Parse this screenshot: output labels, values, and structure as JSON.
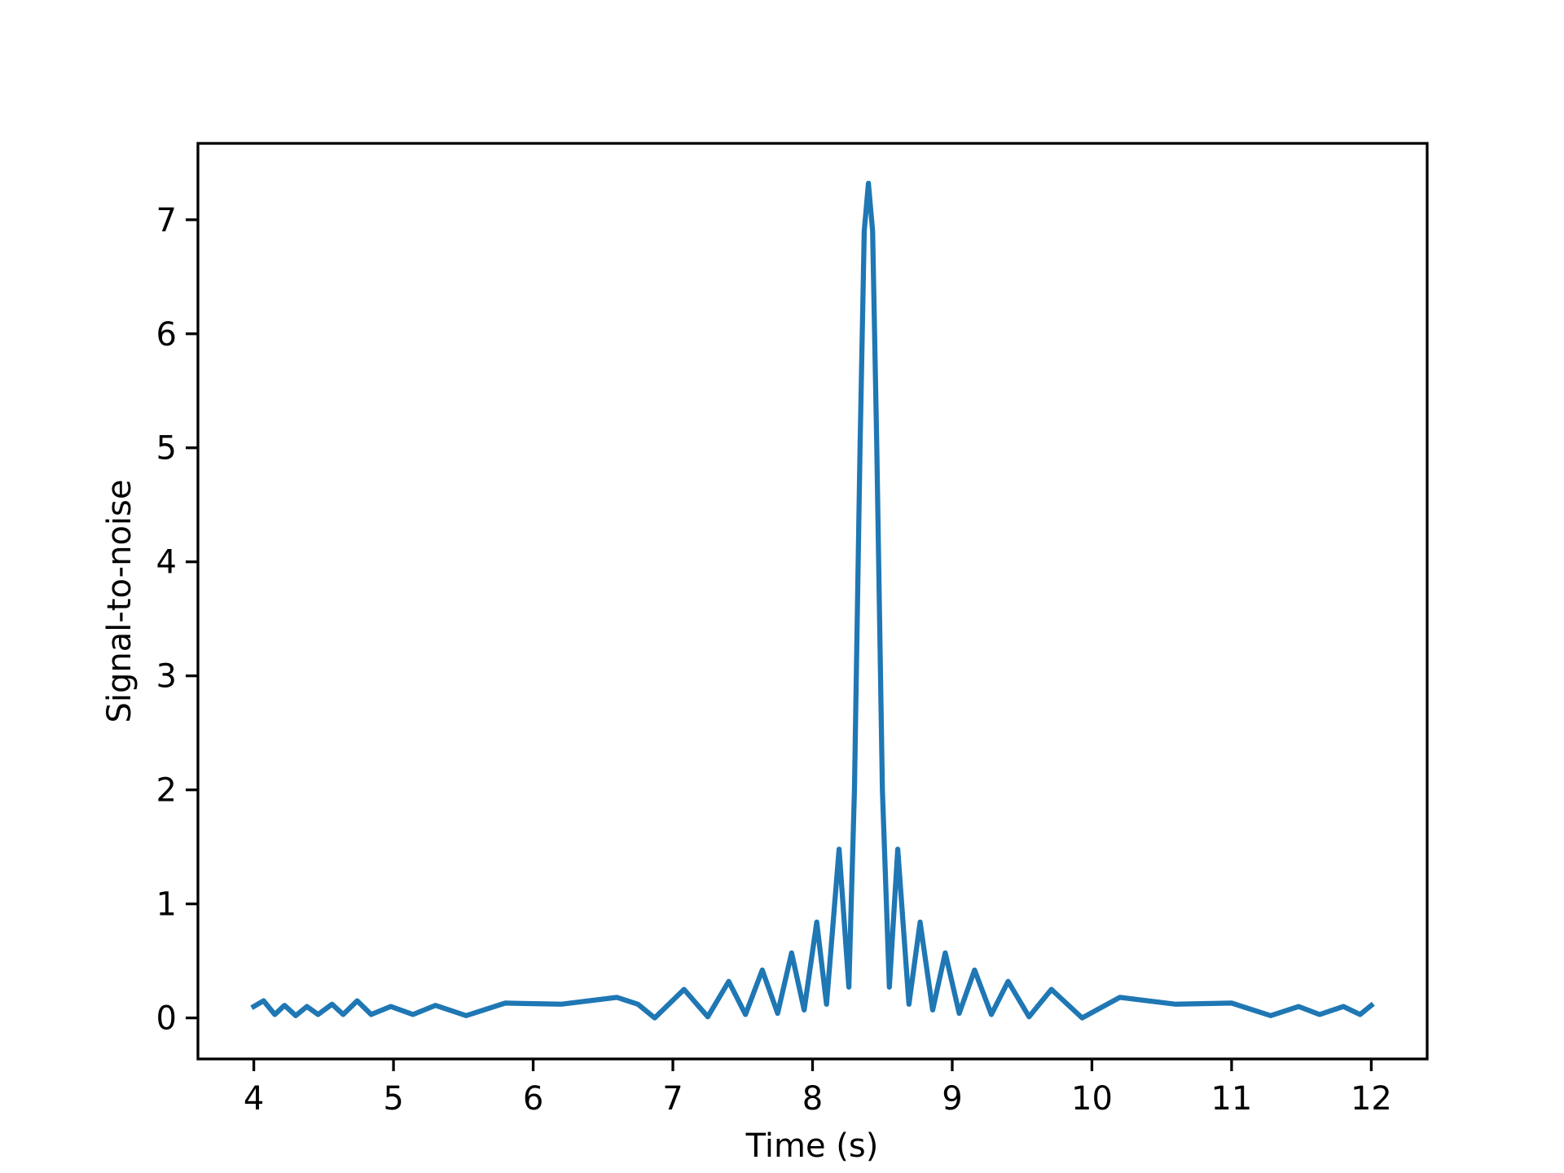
{
  "chart_data": {
    "type": "line",
    "xlabel": "Time (s)",
    "ylabel": "Signal-to-noise",
    "x": [
      4.0,
      4.07,
      4.15,
      4.22,
      4.3,
      4.38,
      4.46,
      4.56,
      4.64,
      4.74,
      4.84,
      4.98,
      5.14,
      5.3,
      5.52,
      5.8,
      6.2,
      6.6,
      6.75,
      6.87,
      7.08,
      7.25,
      7.4,
      7.52,
      7.64,
      7.75,
      7.85,
      7.94,
      8.03,
      8.1,
      8.19,
      8.26,
      8.3,
      8.34,
      8.37,
      8.4,
      8.43,
      8.46,
      8.5,
      8.55,
      8.61,
      8.69,
      8.77,
      8.86,
      8.95,
      9.05,
      9.16,
      9.28,
      9.4,
      9.55,
      9.71,
      9.93,
      10.2,
      10.6,
      11.0,
      11.28,
      11.48,
      11.63,
      11.8,
      11.92,
      12.0
    ],
    "series": [
      {
        "color": "#1f77b4",
        "values": [
          0.1,
          0.15,
          0.03,
          0.11,
          0.02,
          0.1,
          0.03,
          0.12,
          0.03,
          0.15,
          0.03,
          0.1,
          0.03,
          0.11,
          0.02,
          0.13,
          0.12,
          0.18,
          0.12,
          0.0,
          0.25,
          0.01,
          0.32,
          0.03,
          0.42,
          0.04,
          0.57,
          0.07,
          0.84,
          0.12,
          1.48,
          0.27,
          2.0,
          5.0,
          6.9,
          7.32,
          6.9,
          5.0,
          2.0,
          0.27,
          1.48,
          0.12,
          0.84,
          0.07,
          0.57,
          0.04,
          0.42,
          0.03,
          0.32,
          0.01,
          0.25,
          0.0,
          0.18,
          0.12,
          0.13,
          0.02,
          0.1,
          0.03,
          0.1,
          0.03,
          0.11
        ]
      }
    ],
    "xlim": [
      3.6,
      12.4
    ],
    "ylim": [
      -0.36,
      7.67
    ],
    "xticks": [
      4,
      5,
      6,
      7,
      8,
      9,
      10,
      11,
      12
    ],
    "yticks": [
      0,
      1,
      2,
      3,
      4,
      5,
      6,
      7
    ]
  }
}
